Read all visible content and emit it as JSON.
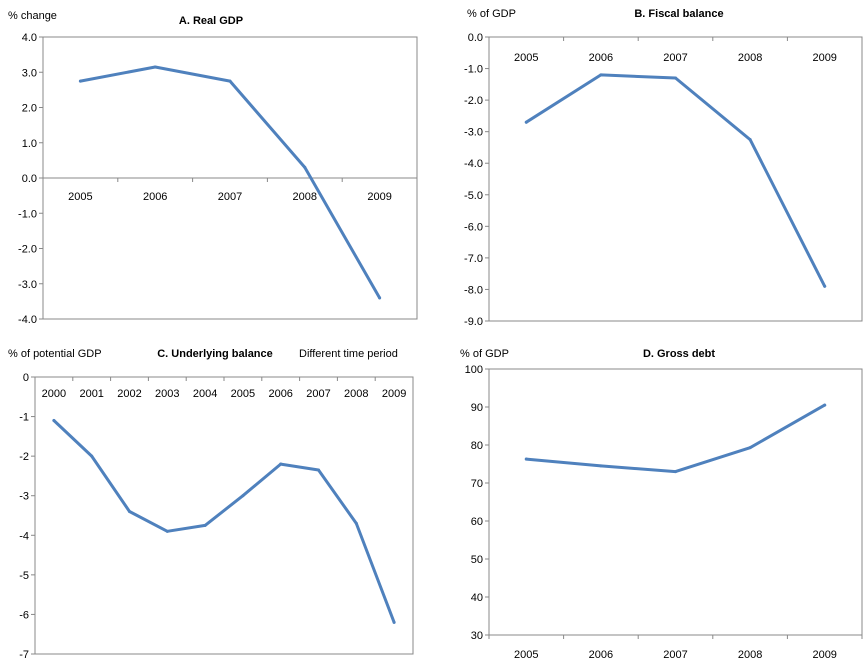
{
  "chart_data": [
    {
      "type": "line",
      "title": "A. Real GDP",
      "ylabel": "% change",
      "note": "",
      "categories": [
        "2005",
        "2006",
        "2007",
        "2008",
        "2009"
      ],
      "series": [
        {
          "values": [
            2.75,
            3.15,
            2.75,
            0.3,
            -3.4
          ]
        }
      ],
      "ylim": [
        -4,
        4
      ],
      "yticks": [
        "4.0",
        "3.0",
        "2.0",
        "1.0",
        "0.0",
        "-1.0",
        "-2.0",
        "-3.0",
        "-4.0"
      ],
      "grid": false,
      "color": "#4F81BD"
    },
    {
      "type": "line",
      "title": "B. Fiscal balance",
      "ylabel": "% of GDP",
      "note": "",
      "categories": [
        "2005",
        "2006",
        "2007",
        "2008",
        "2009"
      ],
      "series": [
        {
          "values": [
            -2.7,
            -1.2,
            -1.3,
            -3.25,
            -7.9
          ]
        }
      ],
      "ylim": [
        -9,
        0
      ],
      "yticks": [
        "0.0",
        "-1.0",
        "-2.0",
        "-3.0",
        "-4.0",
        "-5.0",
        "-6.0",
        "-7.0",
        "-8.0",
        "-9.0"
      ],
      "grid": false,
      "color": "#4F81BD"
    },
    {
      "type": "line",
      "title": "C. Underlying balance",
      "ylabel": "% of potential GDP",
      "note": "Different time period",
      "categories": [
        "2000",
        "2001",
        "2002",
        "2003",
        "2004",
        "2005",
        "2006",
        "2007",
        "2008",
        "2009"
      ],
      "series": [
        {
          "values": [
            -1.1,
            -2.0,
            -3.4,
            -3.9,
            -3.75,
            -3.0,
            -2.2,
            -2.35,
            -3.7,
            -6.2
          ]
        }
      ],
      "ylim": [
        -7,
        0
      ],
      "yticks": [
        "0",
        "-1",
        "-2",
        "-3",
        "-4",
        "-5",
        "-6",
        "-7"
      ],
      "grid": false,
      "color": "#4F81BD"
    },
    {
      "type": "line",
      "title": "D. Gross debt",
      "ylabel": "% of GDP",
      "note": "",
      "categories": [
        "2005",
        "2006",
        "2007",
        "2008",
        "2009"
      ],
      "series": [
        {
          "values": [
            76.3,
            74.5,
            73.0,
            79.3,
            90.5
          ]
        }
      ],
      "ylim": [
        30,
        100
      ],
      "yticks": [
        "100",
        "90",
        "80",
        "70",
        "60",
        "50",
        "40",
        "30"
      ],
      "grid": false,
      "color": "#4F81BD"
    }
  ]
}
